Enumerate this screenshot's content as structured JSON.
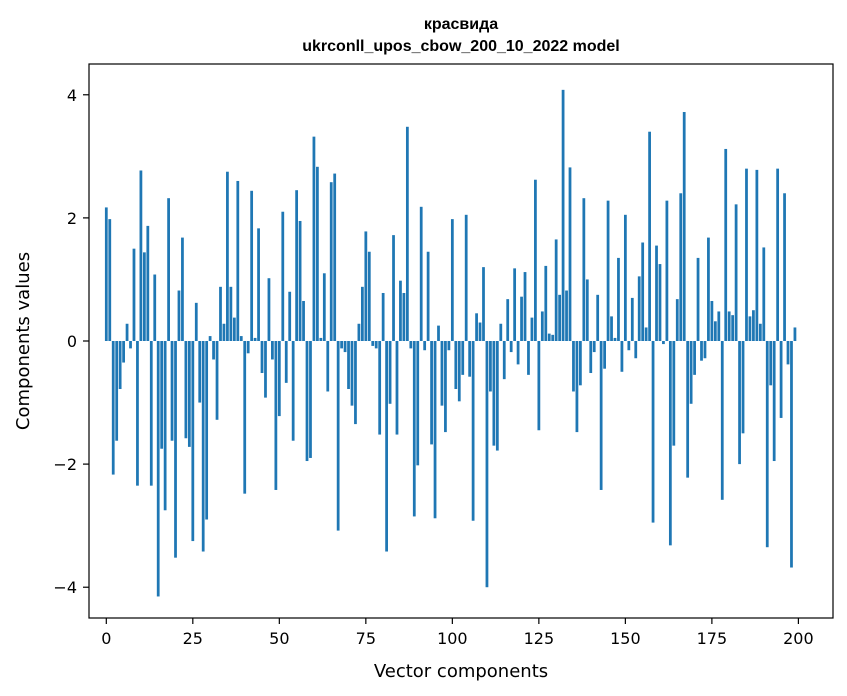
{
  "chart_data": {
    "type": "bar",
    "title_line1": "красвида",
    "title_line2": "ukrconll_upos_cbow_200_10_2022 model",
    "xlabel": "Vector components",
    "ylabel": "Components values",
    "xlim": [
      -5,
      210
    ],
    "ylim": [
      -4.5,
      4.5
    ],
    "xticks": [
      0,
      25,
      50,
      75,
      100,
      125,
      150,
      175,
      200
    ],
    "yticks": [
      -4,
      -2,
      0,
      2,
      4
    ],
    "xtick_labels": [
      "0",
      "25",
      "50",
      "75",
      "100",
      "125",
      "150",
      "175",
      "200"
    ],
    "ytick_labels": [
      "−4",
      "−2",
      "0",
      "2",
      "4"
    ],
    "bar_color": "#1f77b4",
    "grid": false,
    "x": [
      0,
      1,
      2,
      3,
      4,
      5,
      6,
      7,
      8,
      9,
      10,
      11,
      12,
      13,
      14,
      15,
      16,
      17,
      18,
      19,
      20,
      21,
      22,
      23,
      24,
      25,
      26,
      27,
      28,
      29,
      30,
      31,
      32,
      33,
      34,
      35,
      36,
      37,
      38,
      39,
      40,
      41,
      42,
      43,
      44,
      45,
      46,
      47,
      48,
      49,
      50,
      51,
      52,
      53,
      54,
      55,
      56,
      57,
      58,
      59,
      60,
      61,
      62,
      63,
      64,
      65,
      66,
      67,
      68,
      69,
      70,
      71,
      72,
      73,
      74,
      75,
      76,
      77,
      78,
      79,
      80,
      81,
      82,
      83,
      84,
      85,
      86,
      87,
      88,
      89,
      90,
      91,
      92,
      93,
      94,
      95,
      96,
      97,
      98,
      99,
      100,
      101,
      102,
      103,
      104,
      105,
      106,
      107,
      108,
      109,
      110,
      111,
      112,
      113,
      114,
      115,
      116,
      117,
      118,
      119,
      120,
      121,
      122,
      123,
      124,
      125,
      126,
      127,
      128,
      129,
      130,
      131,
      132,
      133,
      134,
      135,
      136,
      137,
      138,
      139,
      140,
      141,
      142,
      143,
      144,
      145,
      146,
      147,
      148,
      149,
      150,
      151,
      152,
      153,
      154,
      155,
      156,
      157,
      158,
      159,
      160,
      161,
      162,
      163,
      164,
      165,
      166,
      167,
      168,
      169,
      170,
      171,
      172,
      173,
      174,
      175,
      176,
      177,
      178,
      179,
      180,
      181,
      182,
      183,
      184,
      185,
      186,
      187,
      188,
      189,
      190,
      191,
      192,
      193,
      194,
      195,
      196,
      197,
      198,
      199
    ],
    "values": [
      2.17,
      1.98,
      -2.17,
      -1.62,
      -0.78,
      -0.35,
      0.28,
      -0.12,
      1.5,
      -2.35,
      2.77,
      1.44,
      1.87,
      -2.35,
      1.08,
      -4.15,
      -1.75,
      -2.75,
      2.32,
      -1.62,
      -3.52,
      0.82,
      1.68,
      -1.58,
      -1.72,
      -3.25,
      0.62,
      -1.0,
      -3.42,
      -2.9,
      0.08,
      -0.3,
      -1.28,
      0.88,
      0.28,
      2.75,
      0.88,
      0.38,
      2.6,
      0.08,
      -2.48,
      -0.2,
      2.44,
      0.05,
      1.83,
      -0.52,
      -0.92,
      1.02,
      -0.3,
      -2.42,
      -1.22,
      2.1,
      -0.68,
      0.8,
      -1.62,
      2.45,
      1.95,
      0.65,
      -1.95,
      -1.9,
      3.32,
      2.83,
      0.05,
      1.1,
      -0.82,
      2.58,
      2.72,
      -3.08,
      -0.12,
      -0.18,
      -0.78,
      -1.05,
      -1.35,
      0.28,
      0.88,
      1.78,
      1.45,
      -0.08,
      -0.12,
      -1.52,
      0.78,
      -3.42,
      -1.02,
      1.72,
      -1.52,
      0.98,
      0.78,
      3.48,
      -0.12,
      -2.85,
      -2.02,
      2.18,
      -0.15,
      1.45,
      -1.68,
      -2.88,
      0.25,
      -1.05,
      -1.48,
      -0.15,
      1.98,
      -0.78,
      -0.98,
      -0.55,
      2.05,
      -0.58,
      -2.92,
      0.45,
      0.3,
      1.2,
      -4.0,
      -0.82,
      -1.7,
      -1.78,
      0.28,
      -0.62,
      0.68,
      -0.18,
      1.18,
      -0.38,
      0.72,
      1.12,
      -0.55,
      0.38,
      2.62,
      -1.45,
      0.48,
      1.22,
      0.12,
      0.1,
      1.65,
      0.75,
      4.08,
      0.82,
      2.82,
      -0.82,
      -1.48,
      -0.72,
      2.32,
      1.0,
      -0.52,
      -0.18,
      0.75,
      -2.42,
      -0.45,
      2.28,
      0.4,
      0.05,
      1.35,
      -0.5,
      2.05,
      -0.15,
      0.7,
      -0.28,
      1.05,
      1.6,
      0.22,
      3.4,
      -2.95,
      1.55,
      1.25,
      -0.05,
      2.28,
      -3.32,
      -1.7,
      0.68,
      2.4,
      3.72,
      -2.22,
      -1.02,
      -0.55,
      1.35,
      -0.32,
      -0.28,
      1.68,
      0.65,
      0.32,
      0.48,
      -2.58,
      3.12,
      0.48,
      0.42,
      2.22,
      -2.0,
      -1.5,
      2.8,
      0.4,
      0.5,
      2.78,
      0.28,
      1.52,
      -3.35,
      -0.72,
      -1.95,
      2.8,
      -1.25,
      2.4,
      -0.38,
      -3.68,
      0.22
    ]
  }
}
